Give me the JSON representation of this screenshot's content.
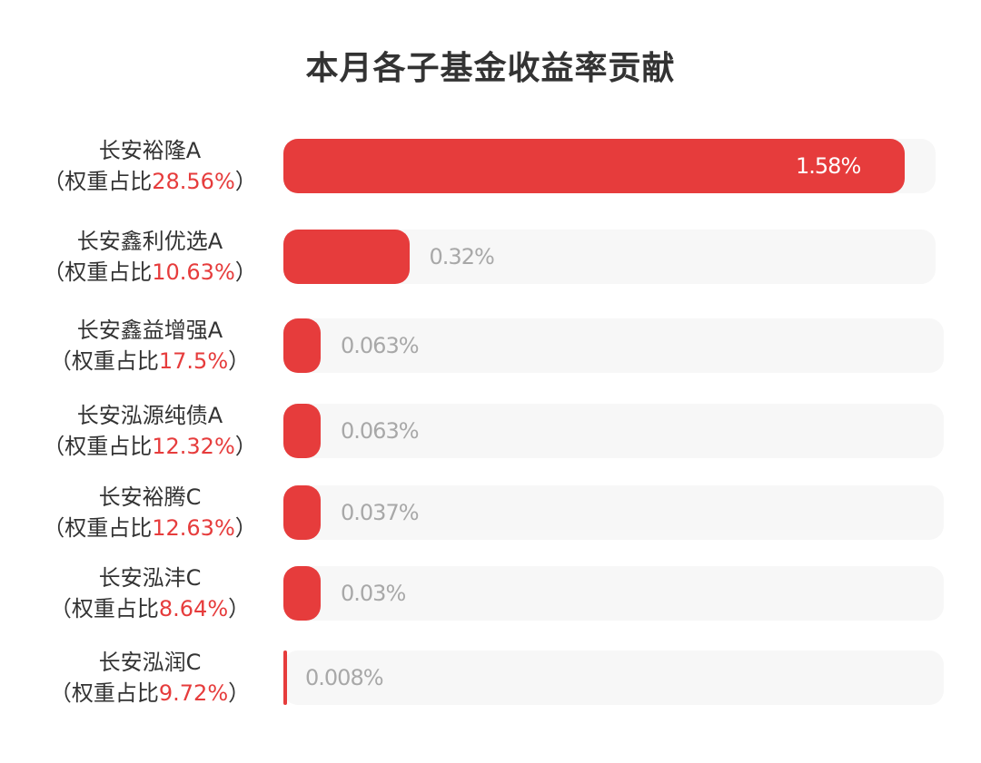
{
  "colors": {
    "bar": "#e63c3c",
    "track": "#f7f7f7",
    "title": "#333333",
    "weight_text": "#e63c3c",
    "value_outside": "#a8a8a8",
    "value_inside": "#ffffff"
  },
  "chart_data": {
    "type": "bar",
    "orientation": "horizontal",
    "title": "本月各子基金收益率贡献",
    "xlabel": "",
    "ylabel": "",
    "grid": false,
    "legend": "none",
    "xlim": [
      0,
      1.67
    ],
    "categories": [
      "长安裕隆A",
      "长安鑫利优选A",
      "长安鑫益增强A",
      "长安泓源纯债A",
      "长安裕腾C",
      "长安泓沣C",
      "长安泓润C"
    ],
    "weight_prefix": "（权重占比",
    "weight_suffix": "）",
    "weights": [
      "28.56%",
      "10.63%",
      "17.5%",
      "12.32%",
      "12.63%",
      "8.64%",
      "9.72%"
    ],
    "values": [
      1.58,
      0.32,
      0.063,
      0.063,
      0.037,
      0.03,
      0.008
    ],
    "value_labels": [
      "1.58%",
      "0.32%",
      "0.063%",
      "0.063%",
      "0.037%",
      "0.03%",
      "0.008%"
    ]
  }
}
